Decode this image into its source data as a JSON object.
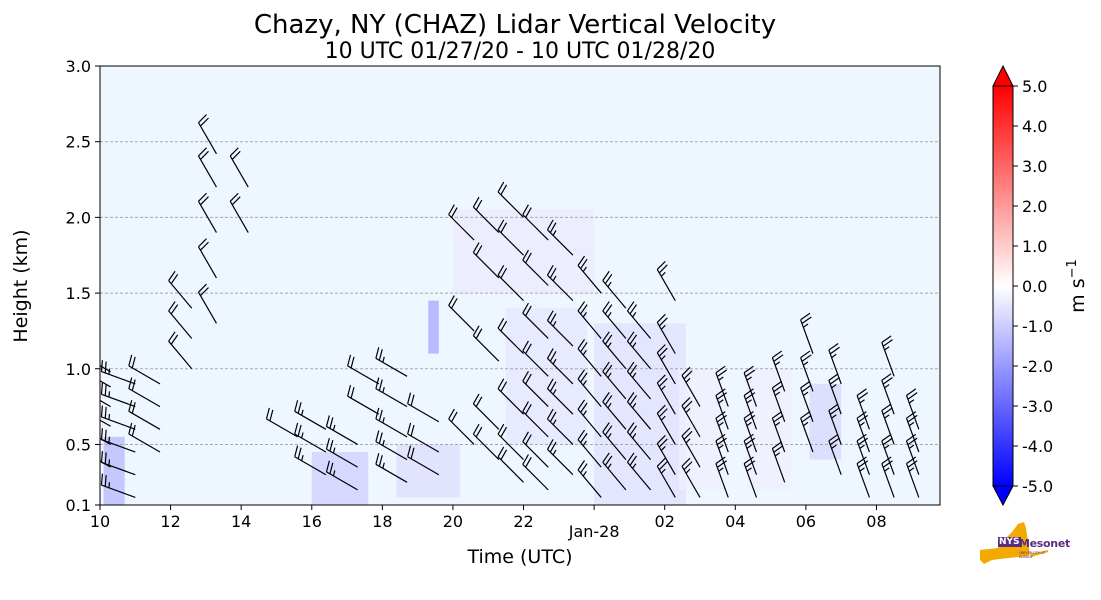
{
  "chart_data": {
    "type": "heatmap",
    "title": "Chazy, NY (CHAZ) Lidar Vertical Velocity",
    "subtitle": "10 UTC 01/27/20 - 10 UTC 01/28/20",
    "xlabel": "Time (UTC)",
    "ylabel": "Height (km)",
    "x_range_hours": [
      0,
      23.8
    ],
    "ylim": [
      0.1,
      3.0
    ],
    "x_ticks": [
      {
        "hour": 0,
        "label": "10"
      },
      {
        "hour": 2,
        "label": "12"
      },
      {
        "hour": 4,
        "label": "14"
      },
      {
        "hour": 6,
        "label": "16"
      },
      {
        "hour": 8,
        "label": "18"
      },
      {
        "hour": 10,
        "label": "20"
      },
      {
        "hour": 12,
        "label": "22"
      },
      {
        "hour": 14,
        "label": "Jan-28"
      },
      {
        "hour": 16,
        "label": "02"
      },
      {
        "hour": 18,
        "label": "04"
      },
      {
        "hour": 20,
        "label": "06"
      },
      {
        "hour": 22,
        "label": "08"
      }
    ],
    "y_ticks": [
      0.1,
      0.5,
      1.0,
      1.5,
      2.0,
      2.5,
      3.0
    ],
    "y_tick_labels": [
      "0.1",
      "0.5",
      "1.0",
      "1.5",
      "2.0",
      "2.5",
      "3.0"
    ],
    "grid": "horizontal-dashed",
    "background_color": "#eef6ff",
    "weak_downdraft_regions": [
      {
        "x0": 0.1,
        "x1": 0.7,
        "y0": 0.1,
        "y1": 0.55,
        "w": -1.5
      },
      {
        "x0": 6.0,
        "x1": 7.6,
        "y0": 0.1,
        "y1": 0.45,
        "w": -1.0
      },
      {
        "x0": 8.4,
        "x1": 10.2,
        "y0": 0.15,
        "y1": 0.5,
        "w": -0.7
      },
      {
        "x0": 9.3,
        "x1": 9.6,
        "y0": 1.1,
        "y1": 1.45,
        "w": -1.8
      },
      {
        "x0": 10.0,
        "x1": 14.0,
        "y0": 1.5,
        "y1": 2.05,
        "w": -0.4
      },
      {
        "x0": 11.5,
        "x1": 13.8,
        "y0": 0.5,
        "y1": 1.4,
        "w": -0.5
      },
      {
        "x0": 14.0,
        "x1": 16.6,
        "y0": 0.1,
        "y1": 1.3,
        "w": -0.6
      },
      {
        "x0": 16.4,
        "x1": 17.6,
        "y0": 0.2,
        "y1": 1.0,
        "w": -0.3
      },
      {
        "x0": 18.3,
        "x1": 19.6,
        "y0": 0.2,
        "y1": 1.0,
        "w": -0.3
      },
      {
        "x0": 20.1,
        "x1": 21.0,
        "y0": 0.4,
        "y1": 0.9,
        "w": -0.8
      }
    ],
    "wind_barb_columns": [
      {
        "hour": 0.3,
        "heights": [
          0.35,
          0.5,
          0.62,
          0.75,
          0.88,
          0.98
        ],
        "dir": 300,
        "speed": 25
      },
      {
        "hour": 1.0,
        "heights": [
          0.15,
          0.3,
          0.45,
          0.6,
          0.75,
          0.9
        ],
        "dir": 290,
        "speed": 25
      },
      {
        "hour": 1.7,
        "heights": [
          0.45,
          0.6,
          0.75,
          0.9
        ],
        "dir": 300,
        "speed": 20
      },
      {
        "hour": 2.6,
        "heights": [
          1.0,
          1.2,
          1.4
        ],
        "dir": 320,
        "speed": 20
      },
      {
        "hour": 3.3,
        "heights": [
          1.3,
          1.6,
          1.9,
          2.2,
          2.42
        ],
        "dir": 330,
        "speed": 20
      },
      {
        "hour": 4.2,
        "heights": [
          1.9,
          2.2
        ],
        "dir": 330,
        "speed": 20
      },
      {
        "hour": 5.6,
        "heights": [
          0.55
        ],
        "dir": 300,
        "speed": 20
      },
      {
        "hour": 6.4,
        "heights": [
          0.3,
          0.45,
          0.6
        ],
        "dir": 300,
        "speed": 25
      },
      {
        "hour": 7.3,
        "heights": [
          0.2,
          0.35,
          0.5
        ],
        "dir": 300,
        "speed": 25
      },
      {
        "hour": 7.9,
        "heights": [
          0.7,
          0.9
        ],
        "dir": 300,
        "speed": 20
      },
      {
        "hour": 8.7,
        "heights": [
          0.25,
          0.4,
          0.55,
          0.75,
          0.95
        ],
        "dir": 300,
        "speed": 25
      },
      {
        "hour": 9.6,
        "heights": [
          0.3,
          0.45,
          0.65
        ],
        "dir": 300,
        "speed": 20
      },
      {
        "hour": 10.6,
        "heights": [
          0.5,
          1.25,
          1.85
        ],
        "dir": 315,
        "speed": 20
      },
      {
        "hour": 11.3,
        "heights": [
          0.4,
          0.6,
          1.05,
          1.6,
          1.9
        ],
        "dir": 315,
        "speed": 20
      },
      {
        "hour": 12.0,
        "heights": [
          0.25,
          0.4,
          0.7,
          1.1,
          1.45,
          1.75,
          2.0
        ],
        "dir": 315,
        "speed": 20
      },
      {
        "hour": 12.7,
        "heights": [
          0.2,
          0.35,
          0.55,
          0.75,
          0.95,
          1.2,
          1.55,
          1.85
        ],
        "dir": 315,
        "speed": 20
      },
      {
        "hour": 13.4,
        "heights": [
          0.3,
          0.5,
          0.7,
          0.9,
          1.15,
          1.45,
          1.75
        ],
        "dir": 315,
        "speed": 25
      },
      {
        "hour": 14.2,
        "heights": [
          0.15,
          0.35,
          0.55,
          0.75,
          0.95,
          1.2,
          1.5
        ],
        "dir": 320,
        "speed": 25
      },
      {
        "hour": 14.9,
        "heights": [
          0.2,
          0.4,
          0.6,
          0.8,
          1.0,
          1.2,
          1.4
        ],
        "dir": 320,
        "speed": 25
      },
      {
        "hour": 15.6,
        "heights": [
          0.2,
          0.4,
          0.6,
          0.8,
          1.0,
          1.2
        ],
        "dir": 320,
        "speed": 25
      },
      {
        "hour": 16.3,
        "heights": [
          0.15,
          0.3,
          0.5,
          0.7,
          0.9,
          1.1,
          1.45
        ],
        "dir": 330,
        "speed": 25
      },
      {
        "hour": 17.0,
        "heights": [
          0.15,
          0.35,
          0.55,
          0.75
        ],
        "dir": 330,
        "speed": 25
      },
      {
        "hour": 17.8,
        "heights": [
          0.15,
          0.3,
          0.45,
          0.6,
          0.75
        ],
        "dir": 340,
        "speed": 25
      },
      {
        "hour": 18.6,
        "heights": [
          0.15,
          0.3,
          0.45,
          0.6,
          0.75
        ],
        "dir": 340,
        "speed": 25
      },
      {
        "hour": 19.4,
        "heights": [
          0.25,
          0.45,
          0.65,
          0.85
        ],
        "dir": 340,
        "speed": 25
      },
      {
        "hour": 20.2,
        "heights": [
          0.45,
          0.65,
          0.85,
          1.1
        ],
        "dir": 340,
        "speed": 25
      },
      {
        "hour": 21.0,
        "heights": [
          0.3,
          0.5,
          0.7,
          0.9
        ],
        "dir": 340,
        "speed": 25
      },
      {
        "hour": 21.8,
        "heights": [
          0.15,
          0.3,
          0.45,
          0.6
        ],
        "dir": 340,
        "speed": 25
      },
      {
        "hour": 22.5,
        "heights": [
          0.15,
          0.3,
          0.5,
          0.7,
          0.95
        ],
        "dir": 340,
        "speed": 25
      },
      {
        "hour": 23.2,
        "heights": [
          0.15,
          0.3,
          0.45,
          0.6
        ],
        "dir": 340,
        "speed": 25
      }
    ]
  },
  "colorbar": {
    "label": "m s",
    "label_exponent": "−1",
    "vmin": -5.0,
    "vmax": 5.0,
    "ticks": [
      5.0,
      4.0,
      3.0,
      2.0,
      1.0,
      0.0,
      -1.0,
      -2.0,
      -3.0,
      -4.0,
      -5.0
    ],
    "tick_labels": [
      "5.0",
      "4.0",
      "3.0",
      "2.0",
      "1.0",
      "0.0",
      "-1.0",
      "-2.0",
      "-3.0",
      "-4.0",
      "-5.0"
    ],
    "colors": {
      "max": "#ff0000",
      "mid": "#ffffff",
      "min": "#0000ff"
    }
  },
  "logo": {
    "text": "Mesonet",
    "badge": "NYS",
    "subtext": "UNIVERSITY AT ALBANY",
    "colors": {
      "state": "#f2a900",
      "text": "#5b2d82"
    }
  }
}
